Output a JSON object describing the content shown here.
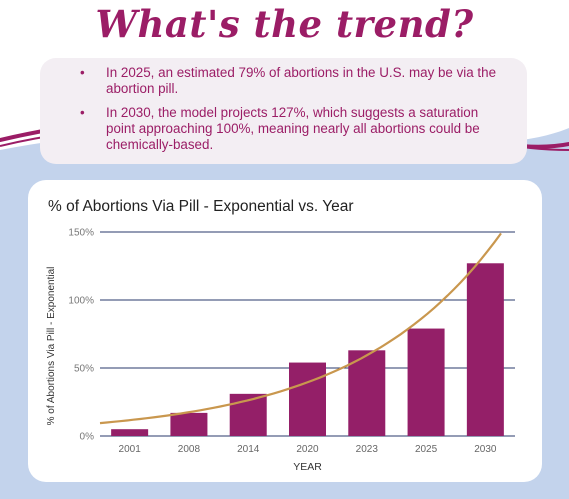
{
  "colors": {
    "accent": "#9b1d66",
    "bar": "#941f68",
    "trend": "#c9974e",
    "page_bg": "#c3d3ec",
    "card_bg": "#f3eef3"
  },
  "header": {
    "title": "What's the trend?"
  },
  "bullets": [
    "In 2025, an estimated 79% of abortions in the U.S. may be via the abortion pill.",
    "In 2030, the model projects 127%, which suggests a saturation point approaching 100%, meaning nearly all abortions could be chemically-based."
  ],
  "chart_data": {
    "type": "bar",
    "title": "% of Abortions Via Pill - Exponential vs. Year",
    "xlabel": "YEAR",
    "ylabel": "% of Abortions Via Pill - Exponential",
    "categories": [
      "2001",
      "2008",
      "2014",
      "2020",
      "2023",
      "2025",
      "2030"
    ],
    "values": [
      5,
      17,
      31,
      54,
      63,
      79,
      127
    ],
    "ylim": [
      0,
      150
    ],
    "yticks": [
      "0%",
      "50%",
      "100%",
      "150%"
    ],
    "ytick_values": [
      0,
      50,
      100,
      150
    ],
    "grid": true,
    "legend": "none",
    "trendline": {
      "type": "exponential",
      "start_value": 9.5,
      "end_value": 149
    }
  }
}
